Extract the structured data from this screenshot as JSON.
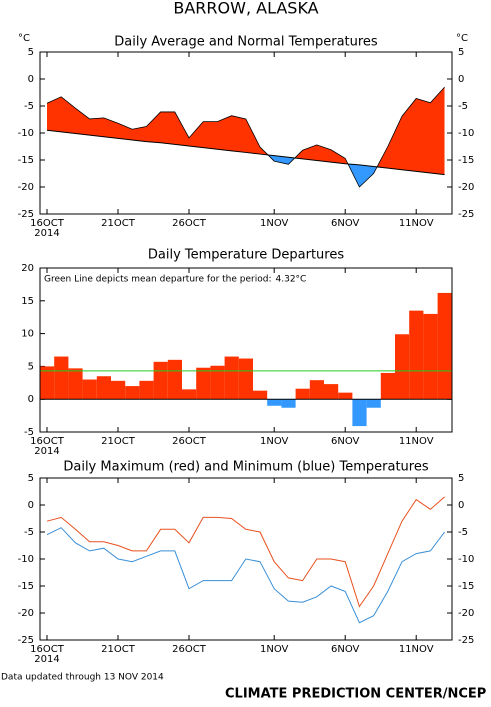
{
  "title": "BARROW, ALASKA",
  "footer_note": "Data updated through 13 NOV 2014",
  "footer_credit": "CLIMATE PREDICTION CENTER/NCEP",
  "chart_data": [
    {
      "type": "fill",
      "title": "Daily Average and Normal Temperatures",
      "unit": "°C",
      "categories": [
        "16OCT",
        null,
        null,
        null,
        null,
        "21OCT",
        null,
        null,
        null,
        null,
        "26OCT",
        null,
        null,
        null,
        null,
        null,
        "1NOV",
        null,
        null,
        null,
        null,
        "6NOV",
        null,
        null,
        null,
        null,
        "11NOV",
        null,
        null
      ],
      "year_label": "2014",
      "values": [
        -4.5,
        -3.3,
        -5.4,
        -7.4,
        -7.2,
        -8.2,
        -9.3,
        -8.8,
        -6.1,
        -6.1,
        -10.9,
        -7.9,
        -7.9,
        -6.8,
        -7.4,
        -12.6,
        -15.2,
        -15.8,
        -13.2,
        -12.2,
        -13.1,
        -14.7,
        -20.0,
        -17.5,
        -12.5,
        -6.9,
        -3.6,
        -4.4,
        -1.5
      ],
      "normal": [
        -9.5,
        -9.8,
        -10.1,
        -10.4,
        -10.7,
        -11.0,
        -11.3,
        -11.6,
        -11.8,
        -12.1,
        -12.4,
        -12.7,
        -13.0,
        -13.3,
        -13.6,
        -13.9,
        -14.2,
        -14.5,
        -14.8,
        -15.1,
        -15.4,
        -15.7,
        -15.9,
        -16.2,
        -16.5,
        -16.8,
        -17.1,
        -17.4,
        -17.7
      ],
      "color_above": "#ff3300",
      "color_below": "#3399ff",
      "ylim": [
        -25,
        5
      ],
      "yticks": [
        -25,
        -20,
        -15,
        -10,
        -5,
        0,
        5
      ],
      "right_ticks": true
    },
    {
      "type": "bar",
      "title": "Daily Temperature Departures",
      "categories": [
        "16OCT",
        null,
        null,
        null,
        null,
        "21OCT",
        null,
        null,
        null,
        null,
        "26OCT",
        null,
        null,
        null,
        null,
        null,
        "1NOV",
        null,
        null,
        null,
        null,
        "6NOV",
        null,
        null,
        null,
        null,
        "11NOV",
        null,
        null
      ],
      "year_label": "2014",
      "values": [
        5,
        6.5,
        4.7,
        3,
        3.5,
        2.8,
        2,
        2.8,
        5.7,
        6,
        1.5,
        4.8,
        5.1,
        6.5,
        6.2,
        1.3,
        -1,
        -1.3,
        1.6,
        2.9,
        2.3,
        1,
        -4.1,
        -1.3,
        4,
        9.9,
        13.5,
        13,
        16.2
      ],
      "color_pos": "#ff3300",
      "color_neg": "#3399ff",
      "mean_note": "Green Line depicts mean departure for the period:",
      "mean_line": {
        "value": 4.32,
        "label": "4.32°C"
      },
      "mean_color": "#22cc22",
      "ylim": [
        -5,
        20
      ],
      "yticks": [
        -5,
        0,
        5,
        10,
        15,
        20
      ],
      "right_ticks": false
    },
    {
      "type": "line",
      "title": "Daily Maximum (red) and Minimum (blue) Temperatures",
      "categories": [
        "16OCT",
        null,
        null,
        null,
        null,
        "21OCT",
        null,
        null,
        null,
        null,
        "26OCT",
        null,
        null,
        null,
        null,
        null,
        "1NOV",
        null,
        null,
        null,
        null,
        "6NOV",
        null,
        null,
        null,
        null,
        "11NOV",
        null,
        null
      ],
      "year_label": "2014",
      "series": [
        {
          "color": "#e8501e",
          "values": [
            -3,
            -2.3,
            -4.5,
            -6.8,
            -6.8,
            -7.5,
            -8.5,
            -8.5,
            -4.5,
            -4.5,
            -7,
            -2.3,
            -2.3,
            -2.5,
            -4.5,
            -5,
            -10.5,
            -13.5,
            -14,
            -10,
            -10,
            -10.5,
            -18.8,
            -15,
            -9,
            -3,
            1,
            -0.8,
            1.5
          ]
        },
        {
          "color": "#3a8fd6",
          "values": [
            -5.5,
            -4.2,
            -7,
            -8.5,
            -8,
            -10,
            -10.5,
            -9.5,
            -8.5,
            -8.5,
            -15.5,
            -14,
            -14,
            -14,
            -10,
            -10.5,
            -15.5,
            -17.8,
            -18,
            -17,
            -15,
            -16,
            -21.8,
            -20.5,
            -16,
            -10.5,
            -9,
            -8.5,
            -5
          ]
        }
      ],
      "ylim": [
        -25,
        5
      ],
      "yticks": [
        -25,
        -20,
        -15,
        -10,
        -5,
        0,
        5
      ],
      "right_ticks": true
    }
  ]
}
